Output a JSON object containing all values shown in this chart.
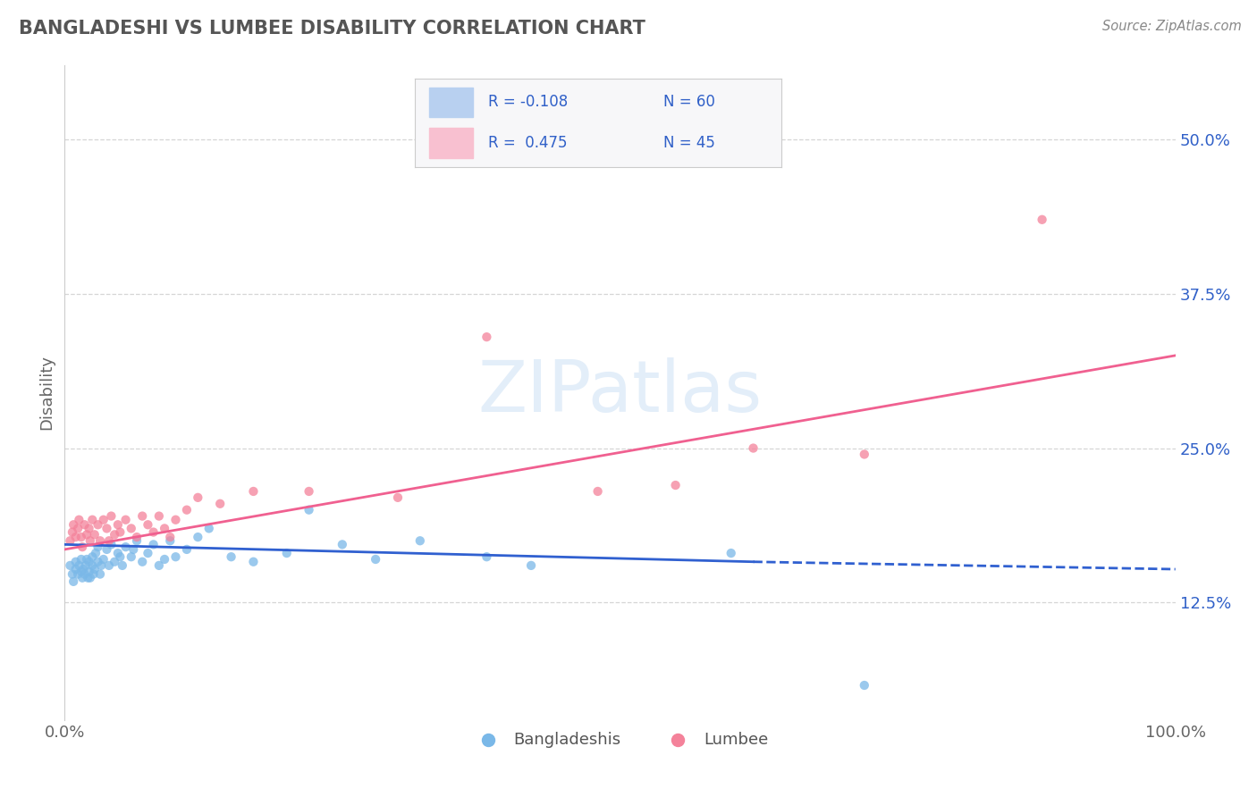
{
  "title": "BANGLADESHI VS LUMBEE DISABILITY CORRELATION CHART",
  "source": "Source: ZipAtlas.com",
  "ylabel": "Disability",
  "background_color": "#ffffff",
  "watermark": "ZIPatlas",
  "scatter_blue": {
    "x": [
      0.005,
      0.007,
      0.008,
      0.01,
      0.01,
      0.012,
      0.013,
      0.015,
      0.015,
      0.016,
      0.017,
      0.018,
      0.019,
      0.02,
      0.021,
      0.022,
      0.022,
      0.023,
      0.025,
      0.025,
      0.026,
      0.027,
      0.028,
      0.03,
      0.03,
      0.032,
      0.033,
      0.035,
      0.038,
      0.04,
      0.042,
      0.045,
      0.048,
      0.05,
      0.052,
      0.055,
      0.06,
      0.062,
      0.065,
      0.07,
      0.075,
      0.08,
      0.085,
      0.09,
      0.095,
      0.1,
      0.11,
      0.12,
      0.13,
      0.15,
      0.17,
      0.2,
      0.22,
      0.25,
      0.28,
      0.32,
      0.38,
      0.42,
      0.6,
      0.72
    ],
    "y": [
      0.155,
      0.148,
      0.142,
      0.158,
      0.152,
      0.148,
      0.155,
      0.15,
      0.16,
      0.145,
      0.152,
      0.148,
      0.155,
      0.16,
      0.145,
      0.15,
      0.158,
      0.145,
      0.155,
      0.162,
      0.148,
      0.152,
      0.165,
      0.158,
      0.17,
      0.148,
      0.155,
      0.16,
      0.168,
      0.155,
      0.172,
      0.158,
      0.165,
      0.162,
      0.155,
      0.17,
      0.162,
      0.168,
      0.175,
      0.158,
      0.165,
      0.172,
      0.155,
      0.16,
      0.175,
      0.162,
      0.168,
      0.178,
      0.185,
      0.162,
      0.158,
      0.165,
      0.2,
      0.172,
      0.16,
      0.175,
      0.162,
      0.155,
      0.165,
      0.058
    ]
  },
  "scatter_pink": {
    "x": [
      0.005,
      0.007,
      0.008,
      0.01,
      0.012,
      0.013,
      0.015,
      0.016,
      0.018,
      0.02,
      0.022,
      0.023,
      0.025,
      0.027,
      0.03,
      0.032,
      0.035,
      0.038,
      0.04,
      0.042,
      0.045,
      0.048,
      0.05,
      0.055,
      0.06,
      0.065,
      0.07,
      0.075,
      0.08,
      0.085,
      0.09,
      0.095,
      0.1,
      0.11,
      0.12,
      0.14,
      0.17,
      0.22,
      0.3,
      0.38,
      0.48,
      0.55,
      0.62,
      0.72,
      0.88
    ],
    "y": [
      0.175,
      0.182,
      0.188,
      0.178,
      0.185,
      0.192,
      0.178,
      0.17,
      0.188,
      0.18,
      0.185,
      0.175,
      0.192,
      0.18,
      0.188,
      0.175,
      0.192,
      0.185,
      0.175,
      0.195,
      0.18,
      0.188,
      0.182,
      0.192,
      0.185,
      0.178,
      0.195,
      0.188,
      0.182,
      0.195,
      0.185,
      0.178,
      0.192,
      0.2,
      0.21,
      0.205,
      0.215,
      0.215,
      0.21,
      0.34,
      0.215,
      0.22,
      0.25,
      0.245,
      0.435
    ]
  },
  "line_blue_solid": {
    "x_start": 0.0,
    "x_end": 0.62,
    "y_start": 0.172,
    "y_end": 0.158
  },
  "line_blue_dash": {
    "x_start": 0.62,
    "x_end": 1.0,
    "y_start": 0.158,
    "y_end": 0.152
  },
  "line_pink": {
    "x_start": 0.0,
    "x_end": 1.0,
    "y_start": 0.168,
    "y_end": 0.325
  },
  "xlim": [
    0.0,
    1.0
  ],
  "ylim": [
    0.03,
    0.56
  ],
  "ytick_vals": [
    0.125,
    0.25,
    0.375,
    0.5
  ],
  "ytick_labels": [
    "12.5%",
    "25.0%",
    "37.5%",
    "50.0%"
  ],
  "blue_color": "#7ab8e8",
  "pink_color": "#f4829a",
  "blue_line_color": "#3060d0",
  "pink_line_color": "#f06090",
  "grid_color": "#cccccc",
  "legend_R1": "R = -0.108",
  "legend_N1": "N = 60",
  "legend_R2": "R =  0.475",
  "legend_N2": "N = 45",
  "legend_box_color1": "#b8d0f0",
  "legend_box_color2": "#f8c0d0",
  "legend_text_color": "#3060c8"
}
